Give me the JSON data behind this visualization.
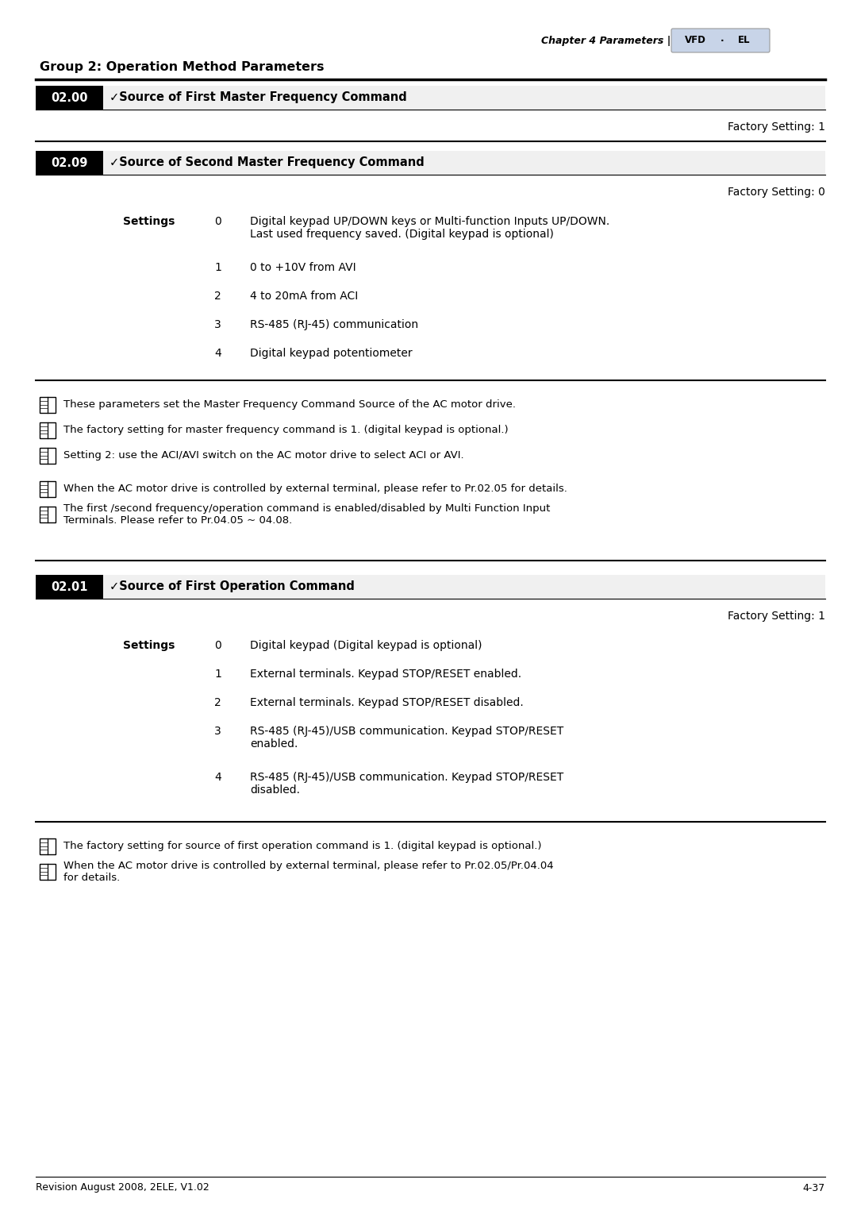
{
  "page_title": "Chapter 4 Parameters |",
  "logo_text": "VFD·EL",
  "group_title": "Group 2: Operation Method Parameters",
  "footer_left": "Revision August 2008, 2ELE, V1.02",
  "footer_right": "4-37",
  "param_symbol": "✓",
  "sections": [
    {
      "param_id": "02.00",
      "param_title": "Source of First Master Frequency Command",
      "factory_setting": "Factory Setting: 1",
      "settings": []
    },
    {
      "param_id": "02.09",
      "param_title": "Source of Second Master Frequency Command",
      "factory_setting": "Factory Setting: 0",
      "settings": [
        {
          "num": "0",
          "desc": "Digital keypad UP/DOWN keys or Multi-function Inputs UP/DOWN.\nLast used frequency saved. (Digital keypad is optional)"
        },
        {
          "num": "1",
          "desc": "0 to +10V from AVI"
        },
        {
          "num": "2",
          "desc": "4 to 20mA from ACI"
        },
        {
          "num": "3",
          "desc": "RS-485 (RJ-45) communication"
        },
        {
          "num": "4",
          "desc": "Digital keypad potentiometer"
        }
      ]
    }
  ],
  "notes1": [
    "These parameters set the Master Frequency Command Source of the AC motor drive.",
    "The factory setting for master frequency command is 1. (digital keypad is optional.)",
    "Setting 2: use the ACI/AVI switch on the AC motor drive to select ACI or AVI.",
    "When the AC motor drive is controlled by external terminal, please refer to Pr.02.05 for details.",
    "The first /second frequency/operation command is enabled/disabled by Multi Function Input\nTerminals. Please refer to Pr.04.05 ~ 04.08."
  ],
  "sections2": [
    {
      "param_id": "02.01",
      "param_title": "Source of First Operation Command",
      "factory_setting": "Factory Setting: 1",
      "settings": [
        {
          "num": "0",
          "desc": "Digital keypad (Digital keypad is optional)"
        },
        {
          "num": "1",
          "desc": "External terminals. Keypad STOP/RESET enabled."
        },
        {
          "num": "2",
          "desc": "External terminals. Keypad STOP/RESET disabled."
        },
        {
          "num": "3",
          "desc": "RS-485 (RJ-45)/USB communication. Keypad STOP/RESET\nenabled."
        },
        {
          "num": "4",
          "desc": "RS-485 (RJ-45)/USB communication. Keypad STOP/RESET\ndisabled."
        }
      ]
    }
  ],
  "notes2": [
    "The factory setting for source of first operation command is 1. (digital keypad is optional.)",
    "When the AC motor drive is controlled by external terminal, please refer to Pr.02.05/Pr.04.04\nfor details."
  ]
}
